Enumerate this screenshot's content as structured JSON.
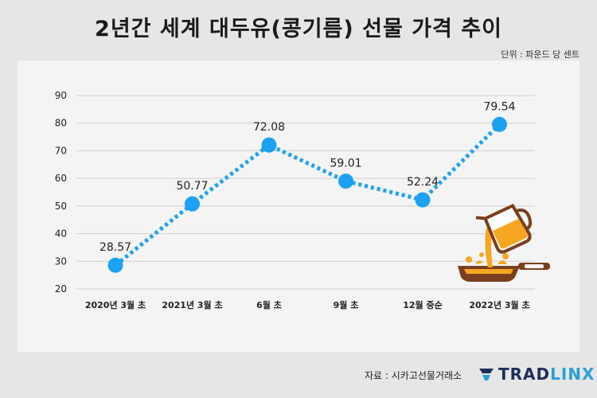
{
  "title": "2년간 세계 대두유(콩기름) 선물 가격 추이",
  "unit_label": "단위 : 파운드 당 센트",
  "source_label": "자료 :  시카고선물거래소",
  "logo": {
    "text_main": "TRAD",
    "text_accent": "LINX"
  },
  "colors": {
    "line": "#1da1f2",
    "point": "#1da1f2",
    "grid": "#cfcfcf",
    "text": "#222222"
  },
  "chart_data": {
    "type": "line",
    "categories": [
      "2020년 3월 초",
      "2021년 3월 초",
      "6월 초",
      "9월 초",
      "12월 중순",
      "2022년 3월 초"
    ],
    "values": [
      28.57,
      50.77,
      72.08,
      59.01,
      52.24,
      79.54
    ],
    "value_labels": [
      "28.57",
      "50.77",
      "72.08",
      "59.01",
      "52.24",
      "79.54"
    ],
    "ylim": [
      20,
      90
    ],
    "yticks": [
      20,
      30,
      40,
      50,
      60,
      70,
      80,
      90
    ],
    "line_style": "dotted",
    "grid": true,
    "xlabel": "",
    "ylabel": ""
  }
}
